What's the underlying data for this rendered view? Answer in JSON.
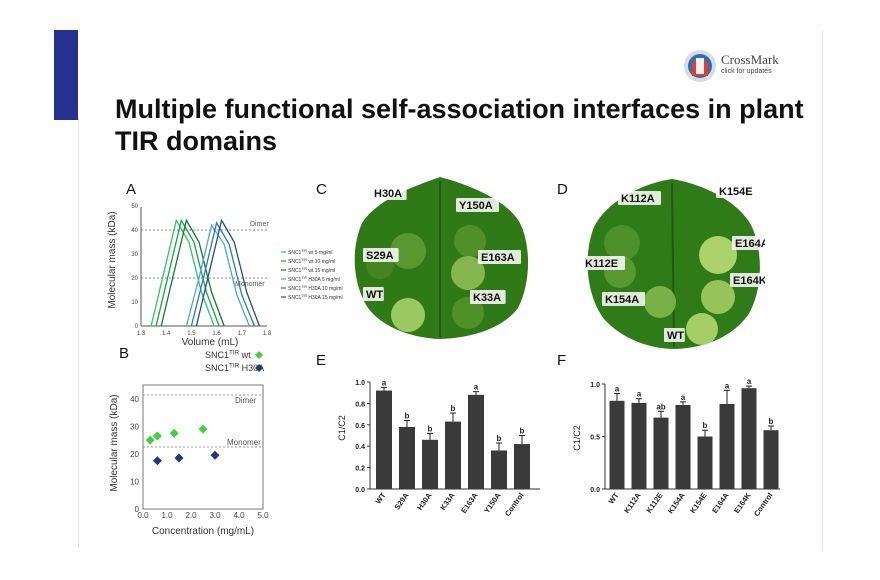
{
  "title": "Multiple functional self-association interfaces in plant TIR domains",
  "crossmark": {
    "name": "CrossMark",
    "sub": "click for updates"
  },
  "panels": {
    "A": {
      "label": "A",
      "ylabel": "Molecular mass (kDa)",
      "xlabel": "Volume (mL)",
      "dimer": "Dimer",
      "monomer": "Monomer",
      "yticks": [
        "50",
        "40",
        "30",
        "20",
        "10",
        "0"
      ],
      "xticks": [
        "1.3",
        "1.4",
        "1.5",
        "1.6",
        "1.7",
        "1.8"
      ],
      "legend": [
        {
          "base": "SNC1",
          "sup": "TIR",
          "rest": " wt 5 mg/ml",
          "color": "#2ec36b"
        },
        {
          "base": "SNC1",
          "sup": "TIR",
          "rest": " wt 10 mg/ml",
          "color": "#1f9e47"
        },
        {
          "base": "SNC1",
          "sup": "TIR",
          "rest": " wt 15 mg/ml",
          "color": "#147a33"
        },
        {
          "base": "SNC1",
          "sup": "TIR",
          "rest": " H30A 5 mg/ml",
          "color": "#4aa5d8"
        },
        {
          "base": "SNC1",
          "sup": "TIR",
          "rest": " H30A 10 mg/ml",
          "color": "#2a79bd"
        },
        {
          "base": "SNC1",
          "sup": "TIR",
          "rest": " H30A 15 mg/ml",
          "color": "#1d4f8f"
        }
      ]
    },
    "B": {
      "label": "B",
      "ylabel": "Molecular mass (kDa)",
      "xlabel": "Concentration (mg/mL)",
      "dimer": "Dimer",
      "monomer": "Monomer",
      "yticks": [
        "40",
        "30",
        "20",
        "10",
        "0"
      ],
      "xticks": [
        "0.0",
        "1.0",
        "2.0",
        "3.0",
        "4.0",
        "5.0"
      ],
      "legend": [
        {
          "base": "SNC1",
          "sup": "TIR",
          "rest": " wt",
          "color": "#3fd13f"
        },
        {
          "base": "SNC1",
          "sup": "TIR",
          "rest": " H30A",
          "color": "#1f3a7a"
        }
      ]
    },
    "C": {
      "label": "C",
      "labels": [
        "H30A",
        "Y150A",
        "S29A",
        "E163A",
        "WT",
        "K33A"
      ]
    },
    "D": {
      "label": "D",
      "labels": [
        "K112A",
        "K154E",
        "E164A",
        "K112E",
        "E164K",
        "K154A",
        "WT"
      ]
    },
    "E": {
      "label": "E",
      "ylabel": "C1/C2",
      "yticks": [
        "1.0",
        "0.8",
        "0.6",
        "0.4",
        "0.2",
        "0.0"
      ]
    },
    "F": {
      "label": "F",
      "ylabel": "C1/C2",
      "yticks": [
        "1.0",
        "0.5",
        "0.0"
      ]
    }
  },
  "chart_data": [
    {
      "panel": "A",
      "type": "line",
      "xlabel": "Volume (mL)",
      "ylabel": "Molecular mass (kDa)",
      "xlim": [
        1.3,
        1.8
      ],
      "ylim": [
        0,
        50
      ],
      "reference_lines": [
        {
          "label": "Dimer",
          "y": 40
        },
        {
          "label": "Monomer",
          "y": 20
        }
      ],
      "series": [
        {
          "name": "SNC1TIR wt 5 mg/ml",
          "color": "#2ec36b",
          "x": [
            1.34,
            1.39,
            1.44,
            1.49,
            1.54,
            1.59
          ],
          "y": [
            0,
            22,
            44,
            35,
            14,
            0
          ]
        },
        {
          "name": "SNC1TIR wt 10 mg/ml",
          "color": "#1f9e47",
          "x": [
            1.36,
            1.41,
            1.46,
            1.51,
            1.56,
            1.61
          ],
          "y": [
            0,
            22,
            44,
            35,
            14,
            0
          ]
        },
        {
          "name": "SNC1TIR wt 15 mg/ml",
          "color": "#147a33",
          "x": [
            1.38,
            1.43,
            1.48,
            1.53,
            1.58,
            1.63
          ],
          "y": [
            0,
            22,
            44,
            35,
            14,
            0
          ]
        },
        {
          "name": "SNC1TIR H30A 5 mg/ml",
          "color": "#4aa5d8",
          "x": [
            1.48,
            1.53,
            1.58,
            1.63,
            1.68,
            1.73
          ],
          "y": [
            0,
            20,
            42,
            34,
            13,
            0
          ]
        },
        {
          "name": "SNC1TIR H30A 10 mg/ml",
          "color": "#2a79bd",
          "x": [
            1.5,
            1.55,
            1.6,
            1.65,
            1.7,
            1.75
          ],
          "y": [
            0,
            21,
            43,
            34,
            13,
            0
          ]
        },
        {
          "name": "SNC1TIR H30A 15 mg/ml",
          "color": "#1d4f8f",
          "x": [
            1.52,
            1.57,
            1.62,
            1.67,
            1.72,
            1.77
          ],
          "y": [
            0,
            22,
            44,
            35,
            14,
            0
          ]
        }
      ]
    },
    {
      "panel": "B",
      "type": "scatter",
      "xlabel": "Concentration (mg/mL)",
      "ylabel": "Molecular mass (kDa)",
      "xlim": [
        0,
        5
      ],
      "ylim": [
        0,
        45
      ],
      "reference_lines": [
        {
          "label": "Dimer",
          "y": 41
        },
        {
          "label": "Monomer",
          "y": 21
        }
      ],
      "series": [
        {
          "name": "SNC1TIR wt",
          "color": "#3fd13f",
          "x": [
            0.3,
            0.6,
            1.3,
            2.5
          ],
          "y": [
            25,
            26.5,
            27.5,
            29
          ]
        },
        {
          "name": "SNC1TIR H30A",
          "color": "#1f3a7a",
          "x": [
            0.6,
            1.5,
            3.0
          ],
          "y": [
            17.5,
            18.5,
            19.5
          ]
        }
      ]
    },
    {
      "panel": "E",
      "type": "bar",
      "ylabel": "C1/C2",
      "ylim": [
        0,
        1.0
      ],
      "categories": [
        "WT",
        "S29A",
        "H30A",
        "K33A",
        "E163A",
        "Y150A",
        "Control"
      ],
      "values": [
        0.92,
        0.58,
        0.46,
        0.63,
        0.88,
        0.36,
        0.42
      ],
      "errors": [
        0.03,
        0.06,
        0.06,
        0.08,
        0.03,
        0.07,
        0.08
      ],
      "letters": [
        "a",
        "b",
        "b",
        "b",
        "a",
        "b",
        "b"
      ]
    },
    {
      "panel": "F",
      "type": "bar",
      "ylabel": "C1/C2",
      "ylim": [
        0,
        1.0
      ],
      "categories": [
        "WT",
        "K112A",
        "K112E",
        "K154A",
        "K154E",
        "E164A",
        "E164K",
        "Control"
      ],
      "values": [
        0.84,
        0.82,
        0.68,
        0.8,
        0.5,
        0.81,
        0.96,
        0.56
      ],
      "errors": [
        0.07,
        0.04,
        0.06,
        0.03,
        0.06,
        0.13,
        0.02,
        0.04
      ],
      "letters": [
        "a",
        "a",
        "ab",
        "a",
        "b",
        "a",
        "a",
        "b"
      ]
    }
  ]
}
